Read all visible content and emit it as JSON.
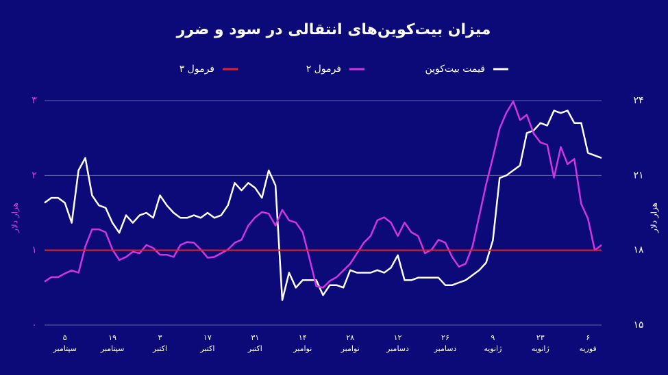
{
  "chart_data": {
    "type": "line",
    "title": "میزان بیت‌کوین‌های انتقالی در سود و ضرر",
    "y_label": "هزار دلار",
    "y2_label": "هزار دلار",
    "categories": [
      null,
      null,
      null,
      "۵\nسپتامبر",
      null,
      null,
      null,
      null,
      null,
      null,
      "۱۹\nسپتامبر",
      null,
      null,
      null,
      null,
      null,
      null,
      "۳\nاکتبر",
      null,
      null,
      null,
      null,
      null,
      null,
      "۱۷\nاکتبر",
      null,
      null,
      null,
      null,
      null,
      null,
      "۳۱\nاکتبر",
      null,
      null,
      null,
      null,
      null,
      null,
      "۱۴\nنوامبر",
      null,
      null,
      null,
      null,
      null,
      null,
      "۲۸\nنوامبر",
      null,
      null,
      null,
      null,
      null,
      null,
      "۱۲\nدسامبر",
      null,
      null,
      null,
      null,
      null,
      null,
      "۲۶\nدسامبر",
      null,
      null,
      null,
      null,
      null,
      null,
      "۹\nژانویه",
      null,
      null,
      null,
      null,
      null,
      null,
      "۲۳\nژانویه",
      null,
      null,
      null,
      null,
      null,
      null,
      "۶\nفوریه",
      null,
      null
    ],
    "series": [
      {
        "name": "قیمت بیت‌کوین",
        "color": "#ffffff",
        "axis": "y2",
        "values": [
          19.9,
          20.1,
          20.1,
          19.9,
          19.1,
          21.2,
          21.7,
          20.2,
          19.8,
          19.7,
          19.1,
          18.7,
          19.4,
          19.1,
          19.4,
          19.5,
          19.3,
          20.2,
          19.8,
          19.5,
          19.3,
          19.3,
          19.4,
          19.3,
          19.5,
          19.3,
          19.4,
          19.8,
          20.7,
          20.4,
          20.7,
          20.5,
          20.1,
          21.2,
          20.6,
          16.0,
          17.1,
          16.5,
          16.8,
          16.8,
          16.8,
          16.2,
          16.6,
          16.6,
          16.5,
          17.2,
          17.1,
          17.1,
          17.1,
          17.2,
          17.1,
          17.3,
          17.8,
          16.8,
          16.8,
          16.9,
          16.9,
          16.9,
          16.9,
          16.6,
          16.6,
          16.7,
          16.8,
          17.0,
          17.2,
          17.5,
          18.4,
          20.9,
          21.0,
          21.2,
          21.4,
          22.7,
          22.8,
          23.1,
          23.0,
          23.6,
          23.5,
          23.6,
          23.1,
          23.1,
          21.9,
          21.8,
          21.7
        ]
      },
      {
        "name": "فرمول ۲",
        "color": "#cf36e0",
        "values": [
          0.58,
          0.64,
          0.64,
          0.69,
          0.73,
          0.7,
          1.05,
          1.28,
          1.28,
          1.24,
          1.01,
          0.87,
          0.91,
          0.98,
          0.96,
          1.07,
          1.03,
          0.94,
          0.94,
          0.91,
          1.07,
          1.11,
          1.1,
          1.01,
          0.9,
          0.91,
          0.96,
          1.01,
          1.1,
          1.14,
          1.33,
          1.44,
          1.51,
          1.49,
          1.33,
          1.54,
          1.4,
          1.37,
          1.24,
          0.89,
          0.52,
          0.5,
          0.59,
          0.64,
          0.73,
          0.82,
          0.96,
          1.1,
          1.19,
          1.4,
          1.44,
          1.37,
          1.19,
          1.37,
          1.24,
          1.19,
          0.96,
          1.01,
          1.14,
          1.1,
          0.91,
          0.78,
          0.82,
          1.05,
          1.46,
          1.88,
          2.24,
          2.63,
          2.84,
          2.99,
          2.74,
          2.81,
          2.56,
          2.44,
          2.41,
          1.97,
          2.38,
          2.15,
          2.22,
          1.62,
          1.42,
          1.0,
          1.07
        ]
      }
    ],
    "reference_line": {
      "name": "فرمول ۳",
      "value": 1,
      "color": "#e8202a"
    },
    "ylim": [
      0,
      3
    ],
    "yticks": [
      {
        "value": 0,
        "label": "۰"
      },
      {
        "value": 1,
        "label": "۱"
      },
      {
        "value": 2,
        "label": "۲"
      },
      {
        "value": 3,
        "label": "۳"
      }
    ],
    "y2lim": [
      15,
      24
    ],
    "y2ticks": [
      {
        "value": 15,
        "label": "۱۵"
      },
      {
        "value": 18,
        "label": "۱۸"
      },
      {
        "value": 21,
        "label": "۲۱"
      },
      {
        "value": 24,
        "label": "۲۴"
      }
    ],
    "grid": true
  }
}
